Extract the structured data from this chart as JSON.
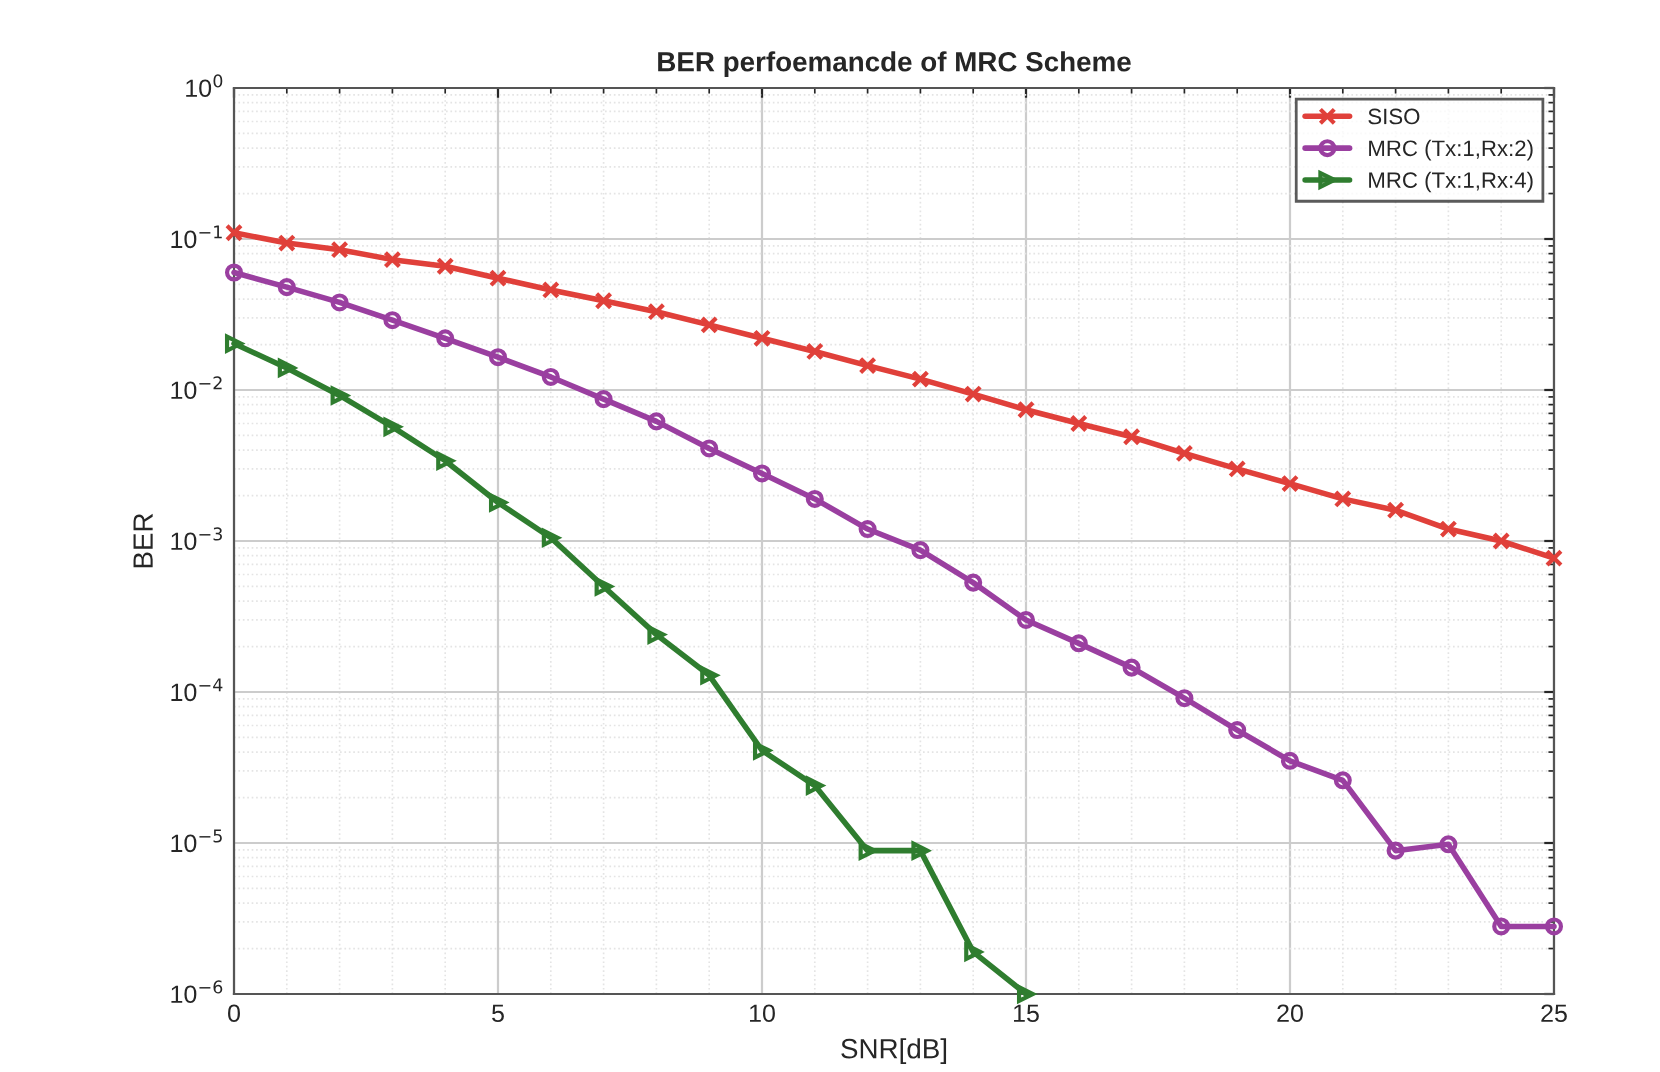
{
  "chart_data": {
    "type": "line",
    "title": "BER perfoemancde of MRC Scheme",
    "xlabel": "SNR[dB]",
    "ylabel": "BER",
    "x": [
      0,
      1,
      2,
      3,
      4,
      5,
      6,
      7,
      8,
      9,
      10,
      11,
      12,
      13,
      14,
      15,
      16,
      17,
      18,
      19,
      20,
      21,
      22,
      23,
      24,
      25
    ],
    "series": [
      {
        "name": "SISO",
        "color": "#e0403a",
        "marker": "cross",
        "values": [
          0.11,
          0.094,
          0.085,
          0.073,
          0.066,
          0.055,
          0.046,
          0.039,
          0.033,
          0.027,
          0.022,
          0.018,
          0.0145,
          0.0118,
          0.0094,
          0.0074,
          0.006,
          0.0049,
          0.0038,
          0.003,
          0.0024,
          0.0019,
          0.0016,
          0.0012,
          0.001,
          0.00077
        ]
      },
      {
        "name": "MRC (Tx:1,Rx:2)",
        "color": "#9a3fa0",
        "marker": "circle",
        "values": [
          0.06,
          0.048,
          0.038,
          0.029,
          0.022,
          0.0165,
          0.0122,
          0.0087,
          0.0062,
          0.0041,
          0.0028,
          0.0019,
          0.0012,
          0.00087,
          0.00053,
          0.0003,
          0.00021,
          0.000145,
          9.1e-05,
          5.6e-05,
          3.5e-05,
          2.6e-05,
          8.9e-06,
          9.8e-06,
          2.8e-06,
          2.8e-06
        ]
      },
      {
        "name": "MRC (Tx:1,Rx:4)",
        "color": "#2f7d2f",
        "marker": "triangle",
        "values": [
          0.0203,
          0.014,
          0.0092,
          0.0057,
          0.0034,
          0.0018,
          0.00105,
          0.0005,
          0.00024,
          0.000129,
          4.1e-05,
          2.4e-05,
          8.9e-06,
          8.9e-06,
          1.9e-06,
          1e-06,
          null,
          null,
          null,
          null,
          null,
          null,
          null,
          null,
          null,
          null
        ]
      }
    ],
    "log": "y",
    "xlim": [
      0,
      25
    ],
    "xticks": [
      0,
      5,
      10,
      15,
      20,
      25
    ],
    "ylim": [
      1e-06,
      1
    ],
    "yticks": [
      {
        "value": 1e-06,
        "label": "10$^{−6}$"
      },
      {
        "value": 1e-05,
        "label": "10$^{−5}$"
      },
      {
        "value": 0.0001,
        "label": "10$^{−4}$"
      },
      {
        "value": 0.001,
        "label": "10$^{−3}$"
      },
      {
        "value": 0.01,
        "label": "10$^{−2}$"
      },
      {
        "value": 0.1,
        "label": "10$^{−1}$"
      },
      {
        "value": 1,
        "label": "10$^{0}$"
      }
    ],
    "grid": true,
    "legend": "top right",
    "line_style": "solid"
  }
}
